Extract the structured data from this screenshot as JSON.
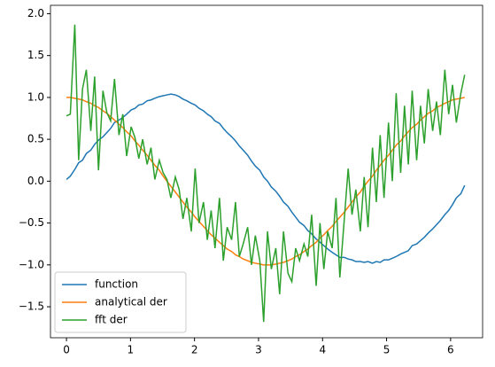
{
  "chart_data": {
    "type": "line",
    "x": [
      0,
      0.06,
      0.13,
      0.19,
      0.25,
      0.31,
      0.38,
      0.44,
      0.5,
      0.57,
      0.63,
      0.69,
      0.75,
      0.82,
      0.88,
      0.94,
      1.01,
      1.07,
      1.13,
      1.19,
      1.26,
      1.32,
      1.38,
      1.45,
      1.51,
      1.57,
      1.63,
      1.7,
      1.76,
      1.82,
      1.88,
      1.95,
      2.01,
      2.07,
      2.14,
      2.2,
      2.26,
      2.32,
      2.39,
      2.45,
      2.51,
      2.58,
      2.64,
      2.7,
      2.76,
      2.83,
      2.89,
      2.95,
      3.02,
      3.08,
      3.14,
      3.2,
      3.27,
      3.33,
      3.39,
      3.46,
      3.52,
      3.58,
      3.64,
      3.71,
      3.77,
      3.83,
      3.9,
      3.96,
      4.02,
      4.08,
      4.15,
      4.21,
      4.27,
      4.34,
      4.4,
      4.46,
      4.52,
      4.59,
      4.65,
      4.71,
      4.78,
      4.84,
      4.9,
      4.96,
      5.03,
      5.09,
      5.15,
      5.22,
      5.28,
      5.34,
      5.4,
      5.47,
      5.53,
      5.59,
      5.65,
      5.72,
      5.78,
      5.84,
      5.91,
      5.97,
      6.03,
      6.09,
      6.16,
      6.22
    ],
    "series": [
      {
        "name": "function",
        "color": "#1f77b4",
        "values": [
          0.02,
          0.06,
          0.14,
          0.22,
          0.25,
          0.33,
          0.37,
          0.44,
          0.49,
          0.53,
          0.58,
          0.63,
          0.7,
          0.73,
          0.76,
          0.8,
          0.85,
          0.87,
          0.91,
          0.92,
          0.96,
          0.97,
          0.99,
          1.01,
          1.02,
          1.03,
          1.04,
          1.03,
          1.01,
          0.98,
          0.96,
          0.93,
          0.91,
          0.87,
          0.84,
          0.8,
          0.77,
          0.72,
          0.69,
          0.63,
          0.58,
          0.53,
          0.48,
          0.42,
          0.37,
          0.31,
          0.24,
          0.18,
          0.13,
          0.05,
          0,
          -0.07,
          -0.12,
          -0.18,
          -0.25,
          -0.3,
          -0.37,
          -0.43,
          -0.49,
          -0.53,
          -0.59,
          -0.63,
          -0.69,
          -0.73,
          -0.77,
          -0.81,
          -0.85,
          -0.88,
          -0.91,
          -0.91,
          -0.93,
          -0.94,
          -0.96,
          -0.96,
          -0.97,
          -0.96,
          -0.98,
          -0.96,
          -0.97,
          -0.94,
          -0.94,
          -0.92,
          -0.9,
          -0.87,
          -0.85,
          -0.83,
          -0.77,
          -0.75,
          -0.71,
          -0.67,
          -0.62,
          -0.57,
          -0.52,
          -0.47,
          -0.4,
          -0.35,
          -0.28,
          -0.2,
          -0.15,
          -0.05
        ]
      },
      {
        "name": "analytical der",
        "color": "#ff7f0e",
        "values": [
          1,
          1,
          0.99,
          0.98,
          0.97,
          0.95,
          0.93,
          0.9,
          0.88,
          0.84,
          0.81,
          0.77,
          0.73,
          0.68,
          0.64,
          0.59,
          0.54,
          0.48,
          0.43,
          0.37,
          0.31,
          0.25,
          0.19,
          0.13,
          0.06,
          0,
          -0.06,
          -0.13,
          -0.19,
          -0.25,
          -0.31,
          -0.37,
          -0.43,
          -0.48,
          -0.54,
          -0.59,
          -0.64,
          -0.68,
          -0.73,
          -0.77,
          -0.81,
          -0.84,
          -0.88,
          -0.9,
          -0.93,
          -0.95,
          -0.97,
          -0.98,
          -0.99,
          -1,
          -1,
          -1,
          -0.99,
          -0.98,
          -0.97,
          -0.95,
          -0.93,
          -0.9,
          -0.88,
          -0.84,
          -0.81,
          -0.77,
          -0.73,
          -0.68,
          -0.64,
          -0.59,
          -0.54,
          -0.48,
          -0.43,
          -0.37,
          -0.31,
          -0.25,
          -0.19,
          -0.13,
          -0.06,
          0,
          0.06,
          0.13,
          0.19,
          0.25,
          0.31,
          0.37,
          0.43,
          0.48,
          0.54,
          0.59,
          0.64,
          0.68,
          0.73,
          0.77,
          0.81,
          0.84,
          0.88,
          0.9,
          0.93,
          0.95,
          0.97,
          0.98,
          0.99,
          1
        ]
      },
      {
        "name": "fft der",
        "color": "#2ca02c",
        "values": [
          0.78,
          0.8,
          1.87,
          0.25,
          1.1,
          1.33,
          0.6,
          1.25,
          0.13,
          1.08,
          0.82,
          0.72,
          1.22,
          0.55,
          0.8,
          0.3,
          0.65,
          0.52,
          0.27,
          0.5,
          0.2,
          0.4,
          0.02,
          0.25,
          0.1,
          0.02,
          -0.2,
          0.05,
          -0.1,
          -0.45,
          -0.2,
          -0.6,
          0.15,
          -0.5,
          -0.25,
          -0.7,
          -0.35,
          -0.8,
          -0.2,
          -0.95,
          -0.55,
          -0.7,
          -0.25,
          -0.9,
          -0.75,
          -0.55,
          -1,
          -0.65,
          -0.95,
          -1.68,
          -0.6,
          -1.05,
          -0.8,
          -1.35,
          -0.6,
          -1.1,
          -1.2,
          -0.8,
          -0.95,
          -0.75,
          -0.9,
          -0.4,
          -1.25,
          -0.5,
          -1.05,
          -0.6,
          -0.8,
          -0.2,
          -1.15,
          -0.45,
          0.15,
          -0.4,
          -0.1,
          -0.6,
          0.05,
          -0.55,
          0.4,
          -0.25,
          0.55,
          -0.2,
          0.7,
          0,
          1.05,
          0.1,
          0.9,
          0.2,
          1.08,
          0.25,
          0.9,
          0.45,
          1.1,
          0.6,
          0.95,
          0.55,
          1.33,
          0.8,
          1.15,
          0.7,
          1.05,
          1.27
        ]
      }
    ],
    "xlim": [
      -0.25,
      6.5
    ],
    "ylim": [
      -1.87,
      2.1
    ],
    "xticks": [
      0,
      1,
      2,
      3,
      4,
      5,
      6
    ],
    "yticks": [
      {
        "value": -1.5,
        "label": "−1.5"
      },
      {
        "value": -1.0,
        "label": "−1.0"
      },
      {
        "value": -0.5,
        "label": "−0.5"
      },
      {
        "value": 0,
        "label": "0.0"
      },
      0.5,
      {
        "value": 1.0,
        "label": "1.0"
      },
      1.5,
      {
        "value": 2.0,
        "label": "2.0"
      }
    ],
    "legend": "lower left"
  }
}
